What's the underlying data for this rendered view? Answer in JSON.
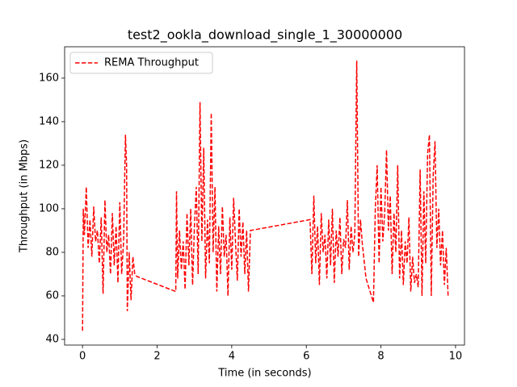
{
  "chart_data": {
    "type": "line",
    "title": "test2_ookla_download_single_1_30000000",
    "x_label": "Time (in seconds)",
    "y_label": "Throughput (in Mbps)",
    "legend_position": "upper left",
    "xlim": [
      -0.48,
      10.24
    ],
    "ylim": [
      37.4,
      174.4
    ],
    "xticks": [
      0,
      2,
      4,
      6,
      8,
      10
    ],
    "yticks": [
      40,
      60,
      80,
      100,
      120,
      140,
      160
    ],
    "x": [
      0,
      0.02,
      0.05,
      0.1,
      0.15,
      0.2,
      0.25,
      0.3,
      0.35,
      0.4,
      0.45,
      0.5,
      0.55,
      0.6,
      0.65,
      0.7,
      0.75,
      0.8,
      0.85,
      0.9,
      0.95,
      1.0,
      1.05,
      1.1,
      1.15,
      1.18,
      1.2,
      1.25,
      1.3,
      1.35,
      1.4,
      1.45,
      2.5,
      2.52,
      2.55,
      2.6,
      2.65,
      2.7,
      2.75,
      2.8,
      2.85,
      2.9,
      2.95,
      3.0,
      3.05,
      3.1,
      3.15,
      3.2,
      3.25,
      3.3,
      3.35,
      3.4,
      3.45,
      3.5,
      3.55,
      3.6,
      3.65,
      3.7,
      3.75,
      3.8,
      3.85,
      3.9,
      3.95,
      4.0,
      4.05,
      4.1,
      4.15,
      4.2,
      4.25,
      4.3,
      4.35,
      4.4,
      4.45,
      4.5,
      6.1,
      6.15,
      6.2,
      6.25,
      6.3,
      6.35,
      6.4,
      6.45,
      6.5,
      6.55,
      6.6,
      6.65,
      6.7,
      6.75,
      6.8,
      6.85,
      6.9,
      6.95,
      7.0,
      7.05,
      7.1,
      7.15,
      7.2,
      7.25,
      7.3,
      7.35,
      7.4,
      7.45,
      7.5,
      7.6,
      7.8,
      7.85,
      7.9,
      7.95,
      8.0,
      8.05,
      8.1,
      8.15,
      8.2,
      8.25,
      8.3,
      8.35,
      8.4,
      8.45,
      8.5,
      8.55,
      8.6,
      8.65,
      8.7,
      8.75,
      8.8,
      8.85,
      8.9,
      8.95,
      9.0,
      9.05,
      9.1,
      9.15,
      9.2,
      9.25,
      9.3,
      9.35,
      9.4,
      9.45,
      9.5,
      9.55,
      9.6,
      9.65,
      9.7,
      9.75,
      9.8
    ],
    "series": [
      {
        "name": "REMA Throughput",
        "color": "#ff0000",
        "values": [
          44,
          100,
          88,
          110,
          82,
          95,
          78,
          101,
          85,
          90,
          75,
          96,
          61,
          104,
          80,
          88,
          70,
          98,
          74,
          92,
          66,
          103,
          70,
          85,
          134,
          120,
          53,
          80,
          58,
          78,
          70,
          69,
          62,
          108,
          68,
          90,
          72,
          85,
          63,
          98,
          74,
          100,
          65,
          92,
          110,
          70,
          149,
          85,
          128,
          68,
          95,
          75,
          144,
          80,
          110,
          62,
          92,
          70,
          101,
          78,
          88,
          60,
          96,
          72,
          105,
          85,
          67,
          100,
          78,
          94,
          70,
          90,
          62,
          90,
          95,
          70,
          106,
          75,
          92,
          65,
          98,
          80,
          88,
          68,
          95,
          74,
          100,
          66,
          90,
          78,
          96,
          70,
          86,
          82,
          104,
          72,
          92,
          80,
          88,
          168,
          78,
          95,
          84,
          68,
          57,
          100,
          120,
          75,
          110,
          85,
          98,
          127,
          90,
          106,
          70,
          98,
          80,
          120,
          68,
          90,
          65,
          85,
          75,
          96,
          62,
          78,
          66,
          70,
          64,
          118,
          60,
          108,
          75,
          125,
          134,
          60,
          115,
          131,
          82,
          100,
          74,
          90,
          65,
          82,
          60
        ]
      }
    ]
  }
}
